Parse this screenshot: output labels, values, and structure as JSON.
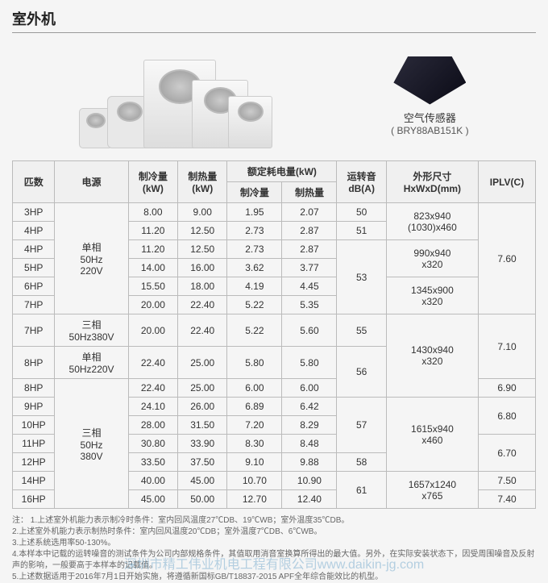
{
  "title": "室外机",
  "sensor": {
    "label": "空气传感器",
    "model": "( BRY88AB151K )"
  },
  "headers": {
    "hp": "匹数",
    "power": "电源",
    "cool": "制冷量\n(kW)",
    "heat": "制热量\n(kW)",
    "rated_group": "额定耗电量(kW)",
    "rated_cool": "制冷量",
    "rated_heat": "制热量",
    "noise": "运转音\ndB(A)",
    "size": "外形尺寸\nHxWxD(mm)",
    "iplv": "IPLV(C)"
  },
  "power_labels": {
    "single_50_220": "单相\n50Hz\n220V",
    "three_50_380": "三相\n50Hz380V",
    "single_50_220_b": "单相\n50Hz220V",
    "three_50_380_b": "三相\n50Hz\n380V"
  },
  "rows": [
    {
      "hp": "3HP",
      "cool": "8.00",
      "heat": "9.00",
      "rc": "1.95",
      "rh": "2.07",
      "noise": "50"
    },
    {
      "hp": "4HP",
      "cool": "11.20",
      "heat": "12.50",
      "rc": "2.73",
      "rh": "2.87",
      "noise": "51"
    },
    {
      "hp": "4HP",
      "cool": "11.20",
      "heat": "12.50",
      "rc": "2.73",
      "rh": "2.87"
    },
    {
      "hp": "5HP",
      "cool": "14.00",
      "heat": "16.00",
      "rc": "3.62",
      "rh": "3.77"
    },
    {
      "hp": "6HP",
      "cool": "15.50",
      "heat": "18.00",
      "rc": "4.19",
      "rh": "4.45"
    },
    {
      "hp": "7HP",
      "cool": "20.00",
      "heat": "22.40",
      "rc": "5.22",
      "rh": "5.35"
    },
    {
      "hp": "7HP",
      "cool": "20.00",
      "heat": "22.40",
      "rc": "5.22",
      "rh": "5.60",
      "noise": "55"
    },
    {
      "hp": "8HP",
      "cool": "22.40",
      "heat": "25.00",
      "rc": "5.80",
      "rh": "5.80"
    },
    {
      "hp": "8HP",
      "cool": "22.40",
      "heat": "25.00",
      "rc": "6.00",
      "rh": "6.00"
    },
    {
      "hp": "9HP",
      "cool": "24.10",
      "heat": "26.00",
      "rc": "6.89",
      "rh": "6.42"
    },
    {
      "hp": "10HP",
      "cool": "28.00",
      "heat": "31.50",
      "rc": "7.20",
      "rh": "8.29"
    },
    {
      "hp": "11HP",
      "cool": "30.80",
      "heat": "33.90",
      "rc": "8.30",
      "rh": "8.48"
    },
    {
      "hp": "12HP",
      "cool": "33.50",
      "heat": "37.50",
      "rc": "9.10",
      "rh": "9.88",
      "noise": "58"
    },
    {
      "hp": "14HP",
      "cool": "40.00",
      "heat": "45.00",
      "rc": "10.70",
      "rh": "10.90"
    },
    {
      "hp": "16HP",
      "cool": "45.00",
      "heat": "50.00",
      "rc": "12.70",
      "rh": "12.40"
    }
  ],
  "noise_merge": {
    "r3_6": "53",
    "r8_9": "56",
    "r10_12": "57",
    "r14_15": "61"
  },
  "sizes": {
    "s1": "823x940\n(1030)x460",
    "s2": "990x940\nx320",
    "s3": "1345x900\nx320",
    "s4": "1430x940\nx320",
    "s5": "1615x940\nx460",
    "s6": "1657x1240\nx765"
  },
  "iplv": {
    "v1": "7.60",
    "v2": "7.10",
    "v3": "6.90",
    "v4": "6.80",
    "v5": "6.70",
    "v6": "7.50",
    "v7": "7.40"
  },
  "notes_label": "注：",
  "notes": [
    "1.上述室外机能力表示制冷时条件：室内回风温度27℃DB、19℃WB；室外温度35℃DB。",
    "2.上述室外机能力表示制热时条件：室内回风温度20℃DB；室外温度7℃DB、6℃WB。",
    "3.上述系统选用率50-130%。",
    "4.本样本中记载的运转噪音的测试条件为公司内部规格条件，其值取用消音室换算所得出的最大值。另外，在实际安装状态下，因受周围噪音及反射声的影响，一般要高于本样本的记载值。",
    "5.上述数据适用于2016年7月1日开始实施，将遵循新国标GB/T18837-2015 APF全年综合能效比的机型。"
  ],
  "watermark": "深圳市精工伟业机电工程有限公司www.daikin-jg.com"
}
